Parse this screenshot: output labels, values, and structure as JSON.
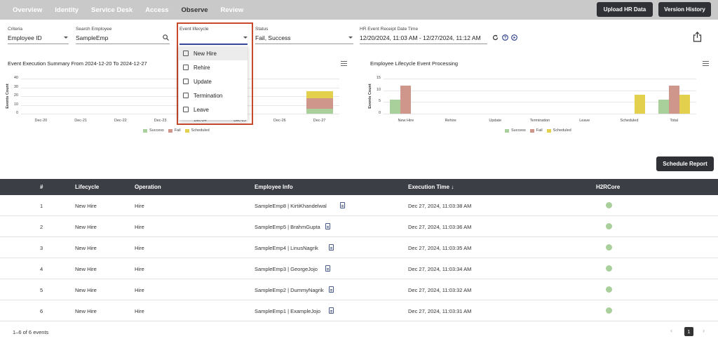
{
  "nav": {
    "tabs": [
      "Overview",
      "Identity",
      "Service Desk",
      "Access",
      "Observe",
      "Review"
    ],
    "active": "Observe",
    "upload_label": "Upload HR Data",
    "version_label": "Version History"
  },
  "filters": {
    "criteria": {
      "label": "Criteria",
      "value": "Employee ID"
    },
    "search": {
      "label": "Search Employee",
      "value": "SampleEmp"
    },
    "lifecycle": {
      "label": "Event lifecycle",
      "value": ""
    },
    "status": {
      "label": "Status",
      "value": "Fail, Success"
    },
    "date": {
      "label": "HR Event Receipt Date Time",
      "value": "12/20/2024, 11:03 AM - 12/27/2024, 11:12 AM"
    }
  },
  "dropdown": {
    "options": [
      "New Hire",
      "Rehire",
      "Update",
      "Termination",
      "Leave"
    ],
    "highlighted": "New Hire"
  },
  "colors": {
    "success": "#a9cf9b",
    "fail": "#cf978c",
    "scheduled": "#e3d04c",
    "header": "#3b3e45"
  },
  "chart_data": [
    {
      "type": "bar",
      "stacked": true,
      "title": "Event Execution Summary From 2024-12-20 To 2024-12-27",
      "ylabel": "Events Count",
      "ylim": [
        0,
        40
      ],
      "yticks": [
        0,
        10,
        20,
        30,
        40
      ],
      "categories": [
        "Dec-20",
        "Dec-21",
        "Dec-22",
        "Dec-23",
        "Dec-24",
        "Dec-25",
        "Dec-26",
        "Dec-27"
      ],
      "series": [
        {
          "name": "Success",
          "values": [
            0,
            0,
            0,
            0,
            0,
            0,
            0,
            6
          ]
        },
        {
          "name": "Fail",
          "values": [
            0,
            0,
            0,
            0,
            0,
            0,
            0,
            12
          ]
        },
        {
          "name": "Scheduled",
          "values": [
            0,
            0,
            0,
            0,
            0,
            0,
            0,
            8
          ]
        }
      ],
      "legend": "bottom"
    },
    {
      "type": "bar",
      "stacked": false,
      "title": "Employee Lifecycle Event Processing",
      "ylabel": "Events Count",
      "ylim": [
        0,
        15
      ],
      "yticks": [
        0,
        5,
        10,
        15
      ],
      "categories": [
        "New Hire",
        "Rehire",
        "Update",
        "Termination",
        "Leave",
        "Scheduled",
        "Total"
      ],
      "series": [
        {
          "name": "Success",
          "values": [
            6,
            0,
            0,
            0,
            0,
            0,
            6
          ]
        },
        {
          "name": "Fail",
          "values": [
            12,
            0,
            0,
            0,
            0,
            0,
            12
          ]
        },
        {
          "name": "Scheduled",
          "values": [
            0,
            0,
            0,
            0,
            0,
            8,
            8
          ]
        }
      ],
      "legend": "bottom"
    }
  ],
  "schedule_label": "Schedule Report",
  "table": {
    "columns": [
      "#",
      "Lifecycle",
      "Operation",
      "Employee Info",
      "Execution Time ↓",
      "H2RCore"
    ],
    "rows": [
      {
        "n": "1",
        "lifecycle": "New Hire",
        "op": "Hire",
        "info": "SampleEmp8 | KirtiKhandelwal",
        "time": "Dec 27, 2024, 11:03:38 AM"
      },
      {
        "n": "2",
        "lifecycle": "New Hire",
        "op": "Hire",
        "info": "SampleEmp5 | BrahmGupta",
        "time": "Dec 27, 2024, 11:03:36 AM"
      },
      {
        "n": "3",
        "lifecycle": "New Hire",
        "op": "Hire",
        "info": "SampleEmp4 | LinusNagrik",
        "time": "Dec 27, 2024, 11:03:35 AM"
      },
      {
        "n": "4",
        "lifecycle": "New Hire",
        "op": "Hire",
        "info": "SampleEmp3 | GeorgeJojo",
        "time": "Dec 27, 2024, 11:03:34 AM"
      },
      {
        "n": "5",
        "lifecycle": "New Hire",
        "op": "Hire",
        "info": "SampleEmp2 | DummyNagrik",
        "time": "Dec 27, 2024, 11:03:32 AM"
      },
      {
        "n": "6",
        "lifecycle": "New Hire",
        "op": "Hire",
        "info": "SampleEmp1 | ExampleJojo",
        "time": "Dec 27, 2024, 11:03:31 AM"
      }
    ]
  },
  "footer": {
    "summary": "1–6 of 6 events",
    "page": "1"
  }
}
